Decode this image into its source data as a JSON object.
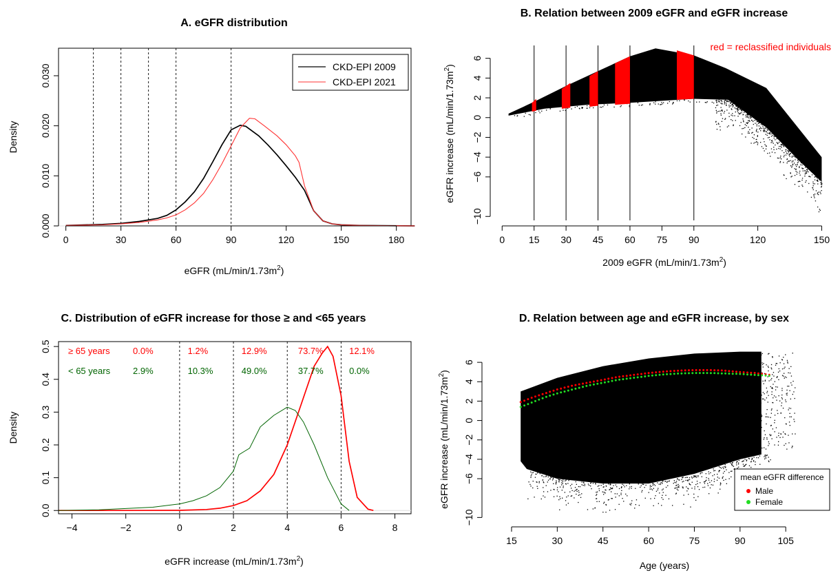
{
  "chart_data": [
    {
      "type": "line",
      "title": "A. eGFR distribution",
      "xlabel": "eGFR (mL/min/1.73m",
      "xlabel_sup": "2",
      "xlabel_tail": ")",
      "ylabel": "Density",
      "xlim": [
        -4,
        188
      ],
      "ylim": [
        0,
        0.0355
      ],
      "xticks": [
        0,
        30,
        60,
        90,
        120,
        150,
        180
      ],
      "yticks": [
        0.0,
        0.01,
        0.02,
        0.03
      ],
      "ytick_labels": [
        "0.000",
        "0.010",
        "0.020",
        "0.030"
      ],
      "vlines": [
        15,
        30,
        45,
        60,
        90
      ],
      "legend_position": "top-right",
      "colors": {
        "CKD-EPI 2009": "#000000",
        "CKD-EPI 2021": "#ff3333"
      },
      "series": [
        {
          "name": "CKD-EPI 2009",
          "x": [
            0,
            20,
            30,
            40,
            50,
            55,
            60,
            65,
            70,
            75,
            80,
            85,
            90,
            95,
            98,
            105,
            110,
            115,
            120,
            125,
            130,
            135,
            140,
            145,
            150,
            160,
            190
          ],
          "y": [
            0.0001,
            0.0003,
            0.0005,
            0.0009,
            0.0015,
            0.0021,
            0.0032,
            0.0048,
            0.0068,
            0.0095,
            0.0128,
            0.0162,
            0.0192,
            0.0201,
            0.0199,
            0.018,
            0.0162,
            0.0142,
            0.012,
            0.0097,
            0.0071,
            0.003,
            0.001,
            0.0004,
            0.0002,
            0.0001,
            0.0
          ]
        },
        {
          "name": "CKD-EPI 2021",
          "x": [
            0,
            20,
            30,
            40,
            50,
            55,
            60,
            65,
            70,
            75,
            80,
            85,
            90,
            95,
            100,
            103,
            108,
            115,
            120,
            125,
            127,
            130,
            135,
            140,
            145,
            150,
            160,
            190
          ],
          "y": [
            0.0001,
            0.0002,
            0.0004,
            0.0007,
            0.0012,
            0.0016,
            0.0022,
            0.0032,
            0.0046,
            0.0065,
            0.0092,
            0.0124,
            0.016,
            0.0196,
            0.0215,
            0.0214,
            0.02,
            0.018,
            0.0162,
            0.014,
            0.0127,
            0.008,
            0.003,
            0.001,
            0.0004,
            0.0002,
            0.0001,
            0.0
          ]
        }
      ]
    },
    {
      "type": "scatter",
      "title": "B. Relation between 2009 eGFR and eGFR increase",
      "xlabel": "2009 eGFR (mL/min/1.73m",
      "xlabel_sup": "2",
      "xlabel_tail": ")",
      "ylabel": "eGFR increase (mL/min/1.73m",
      "ylabel_sup": "2",
      "ylabel_tail": ")",
      "xlim": [
        -3,
        156
      ],
      "ylim": [
        -10.4,
        7.3
      ],
      "xticks": [
        0,
        15,
        30,
        45,
        60,
        75,
        90,
        120,
        150
      ],
      "yticks": [
        -10,
        -6,
        -4,
        -2,
        0,
        2,
        4,
        6
      ],
      "vlines": [
        15,
        30,
        45,
        60,
        90
      ],
      "annotation": "red = reclassified individuals",
      "colors": {
        "points": "#000000",
        "reclassified": "#ff0000",
        "annotation": "#ff0000"
      },
      "cloud": {
        "upper_x": [
          3,
          15,
          30,
          45,
          60,
          72,
          90,
          105,
          124,
          150
        ],
        "upper_y": [
          0.4,
          1.6,
          3.2,
          4.7,
          6.2,
          7.0,
          6.3,
          5.0,
          3.0,
          -4.0
        ],
        "lower_x": [
          3,
          20,
          40,
          60,
          90,
          106,
          124,
          140,
          150
        ],
        "lower_y": [
          0.2,
          0.9,
          1.3,
          1.5,
          1.9,
          1.8,
          -1.0,
          -4.5,
          -6.5
        ]
      },
      "reclassified_bands": [
        {
          "x": [
            14,
            16
          ],
          "y_top": [
            1.5,
            1.9
          ],
          "y_bottom": [
            0.6,
            0.7
          ]
        },
        {
          "x": [
            28,
            32
          ],
          "y_top": [
            2.9,
            3.5
          ],
          "y_bottom": [
            0.9,
            1.0
          ]
        },
        {
          "x": [
            41,
            45
          ],
          "y_top": [
            4.2,
            4.7
          ],
          "y_bottom": [
            1.1,
            1.2
          ]
        },
        {
          "x": [
            53,
            60
          ],
          "y_top": [
            5.5,
            6.2
          ],
          "y_bottom": [
            1.3,
            1.4
          ]
        },
        {
          "x": [
            82,
            90
          ],
          "y_top": [
            6.8,
            6.3
          ],
          "y_bottom": [
            1.8,
            1.9
          ]
        }
      ]
    },
    {
      "type": "line",
      "title": "C. Distribution of eGFR increase for those ≥ and <65 years",
      "xlabel": "eGFR increase (mL/min/1.73m",
      "xlabel_sup": "2",
      "xlabel_tail": ")",
      "ylabel": "Density",
      "xlim": [
        -4.5,
        8.6
      ],
      "ylim": [
        -0.01,
        0.515
      ],
      "xticks": [
        -4,
        -2,
        0,
        2,
        4,
        6,
        8
      ],
      "yticks": [
        0.0,
        0.1,
        0.2,
        0.3,
        0.4,
        0.5
      ],
      "ytick_labels": [
        "0.0",
        "0.1",
        "0.2",
        "0.3",
        "0.4",
        "0.5"
      ],
      "vlines": [
        0,
        2,
        4,
        6
      ],
      "colors": {
        "≥ 65 years": "#ff0000",
        "< 65 years": "#006400"
      },
      "group_labels": [
        {
          "name": "≥ 65 years",
          "color": "#ff0000",
          "percents": [
            "0.0%",
            "1.2%",
            "12.9%",
            "73.7%",
            "12.1%"
          ]
        },
        {
          "name": "< 65 years",
          "color": "#006400",
          "percents": [
            "2.9%",
            "10.3%",
            "49.0%",
            "37.7%",
            "0.0%"
          ]
        }
      ],
      "series": [
        {
          "name": "≥ 65 years",
          "x": [
            -4.5,
            -2,
            0,
            1,
            1.5,
            2,
            2.5,
            3,
            3.5,
            4,
            4.5,
            5,
            5.3,
            5.5,
            5.7,
            6,
            6.3,
            6.6,
            7,
            7.2
          ],
          "y": [
            0.0,
            0.0,
            0.0005,
            0.003,
            0.007,
            0.015,
            0.03,
            0.06,
            0.11,
            0.2,
            0.32,
            0.44,
            0.48,
            0.5,
            0.47,
            0.35,
            0.15,
            0.04,
            0.004,
            0.0
          ]
        },
        {
          "name": "< 65 years",
          "x": [
            -4.5,
            -3,
            -2,
            -1,
            0,
            0.5,
            1,
            1.5,
            2,
            2.2,
            2.4,
            2.6,
            3,
            3.5,
            4,
            4.3,
            4.6,
            5,
            5.5,
            6,
            6.3
          ],
          "y": [
            0.0,
            0.002,
            0.006,
            0.01,
            0.02,
            0.03,
            0.045,
            0.07,
            0.12,
            0.17,
            0.18,
            0.19,
            0.255,
            0.29,
            0.315,
            0.305,
            0.27,
            0.2,
            0.1,
            0.02,
            0.0
          ]
        }
      ]
    },
    {
      "type": "scatter",
      "title": "D. Relation between age and eGFR increase, by sex",
      "xlabel": "Age (years)",
      "ylabel": "eGFR increase (mL/min/1.73m",
      "ylabel_sup": "2",
      "ylabel_tail": ")",
      "xlim": [
        8,
        121
      ],
      "ylim": [
        -10.4,
        7.5
      ],
      "xticks": [
        15,
        30,
        45,
        60,
        75,
        90,
        105
      ],
      "yticks": [
        -10,
        -6,
        -4,
        -2,
        0,
        2,
        4,
        6
      ],
      "legend_title": "mean eGFR difference",
      "legend_position": "bottom-right",
      "colors": {
        "points": "#000000",
        "Male": "#ff0000",
        "Female": "#22dd22"
      },
      "cloud": {
        "upper_x": [
          18,
          30,
          45,
          60,
          75,
          90,
          97
        ],
        "upper_y": [
          3.0,
          4.4,
          5.6,
          6.4,
          6.9,
          7.1,
          7.1
        ],
        "lower_x": [
          18,
          20,
          30,
          45,
          60,
          75,
          90,
          97
        ],
        "lower_y": [
          -4.2,
          -5.0,
          -6.0,
          -6.5,
          -6.5,
          -5.5,
          -4.0,
          -3.5
        ]
      },
      "series": [
        {
          "name": "Male",
          "x": [
            18,
            22,
            26,
            30,
            35,
            40,
            45,
            50,
            55,
            60,
            65,
            70,
            75,
            80,
            85,
            90,
            95,
            100
          ],
          "y": [
            1.9,
            2.4,
            2.8,
            3.2,
            3.6,
            3.9,
            4.2,
            4.5,
            4.7,
            4.9,
            5.05,
            5.15,
            5.2,
            5.2,
            5.15,
            5.0,
            4.9,
            4.7
          ]
        },
        {
          "name": "Female",
          "x": [
            18,
            22,
            26,
            30,
            35,
            40,
            45,
            50,
            55,
            60,
            65,
            70,
            75,
            80,
            85,
            90,
            95,
            100
          ],
          "y": [
            1.4,
            1.9,
            2.4,
            2.8,
            3.2,
            3.6,
            3.9,
            4.2,
            4.4,
            4.6,
            4.75,
            4.85,
            4.9,
            4.9,
            4.85,
            4.8,
            4.7,
            4.6
          ]
        }
      ]
    }
  ]
}
